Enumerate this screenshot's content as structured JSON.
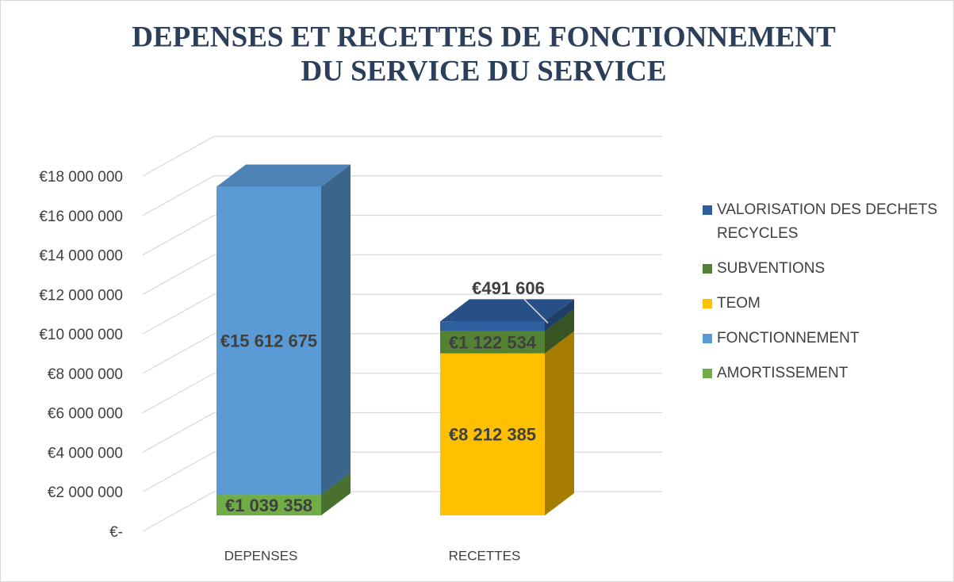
{
  "chart_data": {
    "type": "bar",
    "stacked": true,
    "title": [
      "DEPENSES ET RECETTES DE FONCTIONNEMENT",
      "DU SERVICE DU SERVICE"
    ],
    "categories": [
      "DEPENSES",
      "RECETTES"
    ],
    "series": [
      {
        "name": "AMORTISSEMENT",
        "color": "#70ad47",
        "values": [
          1039358,
          null
        ],
        "value_labels": [
          "€1 039 358",
          null
        ]
      },
      {
        "name": "FONCTIONNEMENT",
        "color": "#5b9bd5",
        "values": [
          15612675,
          null
        ],
        "value_labels": [
          "€15 612 675",
          null
        ]
      },
      {
        "name": "TEOM",
        "color": "#ffc000",
        "values": [
          null,
          8212385
        ],
        "value_labels": [
          null,
          "€8 212 385"
        ]
      },
      {
        "name": "SUBVENTIONS",
        "color": "#548235",
        "values": [
          null,
          1122534
        ],
        "value_labels": [
          null,
          "€1 122 534"
        ]
      },
      {
        "name": "VALORISATION DES DECHETS RECYCLES",
        "color": "#2e5f9e",
        "values": [
          null,
          491606
        ],
        "value_labels": [
          null,
          "€491 606"
        ]
      }
    ],
    "ylim": [
      0,
      18000000
    ],
    "yticks": [
      {
        "value": 0,
        "label": "€-"
      },
      {
        "value": 2000000,
        "label": "€2 000 000"
      },
      {
        "value": 4000000,
        "label": "€4 000 000"
      },
      {
        "value": 6000000,
        "label": "€6 000 000"
      },
      {
        "value": 8000000,
        "label": "€8 000 000"
      },
      {
        "value": 10000000,
        "label": "€10 000 000"
      },
      {
        "value": 12000000,
        "label": "€12 000 000"
      },
      {
        "value": 14000000,
        "label": "€14 000 000"
      },
      {
        "value": 16000000,
        "label": "€16 000 000"
      },
      {
        "value": 18000000,
        "label": "€18 000 000"
      }
    ],
    "grid": true,
    "legend": "right"
  }
}
